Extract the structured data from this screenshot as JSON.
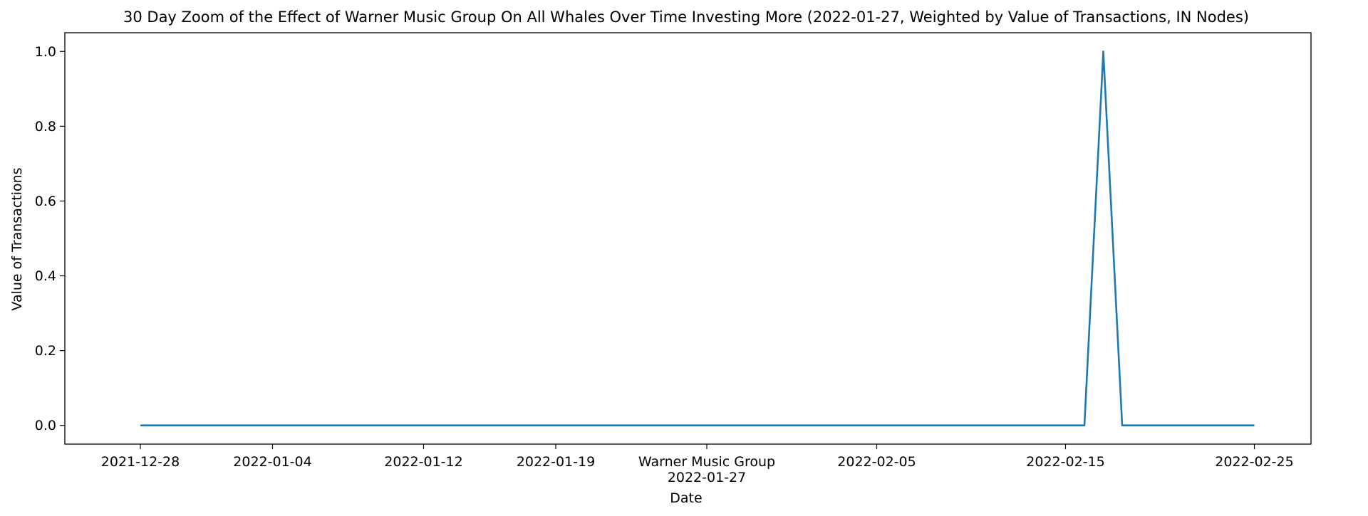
{
  "chart_data": {
    "type": "line",
    "title": "30 Day Zoom of the Effect of Warner Music Group On All Whales Over Time Investing More (2022-01-27, Weighted by Value of Transactions, IN Nodes)",
    "xlabel": "Date",
    "ylabel": "Value of Transactions",
    "xlim": [
      "2021-12-24",
      "2022-02-28"
    ],
    "ylim": [
      -0.05,
      1.05
    ],
    "x_ticks": [
      {
        "label": "2021-12-28",
        "date": "2021-12-28"
      },
      {
        "label": "2022-01-04",
        "date": "2022-01-04"
      },
      {
        "label": "2022-01-12",
        "date": "2022-01-12"
      },
      {
        "label": "2022-01-19",
        "date": "2022-01-19"
      },
      {
        "label": "Warner Music Group\n2022-01-27",
        "date": "2022-01-27"
      },
      {
        "label": "2022-02-05",
        "date": "2022-02-05"
      },
      {
        "label": "2022-02-15",
        "date": "2022-02-15"
      },
      {
        "label": "2022-02-25",
        "date": "2022-02-25"
      }
    ],
    "y_ticks": [
      "0.0",
      "0.2",
      "0.4",
      "0.6",
      "0.8",
      "1.0"
    ],
    "grid": false,
    "series": [
      {
        "color": "#1f77b4",
        "points": [
          {
            "x": "2021-12-28",
            "y": 0
          },
          {
            "x": "2022-02-16",
            "y": 0
          },
          {
            "x": "2022-02-17",
            "y": 1.0
          },
          {
            "x": "2022-02-18",
            "y": 0
          },
          {
            "x": "2022-02-25",
            "y": 0
          }
        ]
      }
    ]
  }
}
